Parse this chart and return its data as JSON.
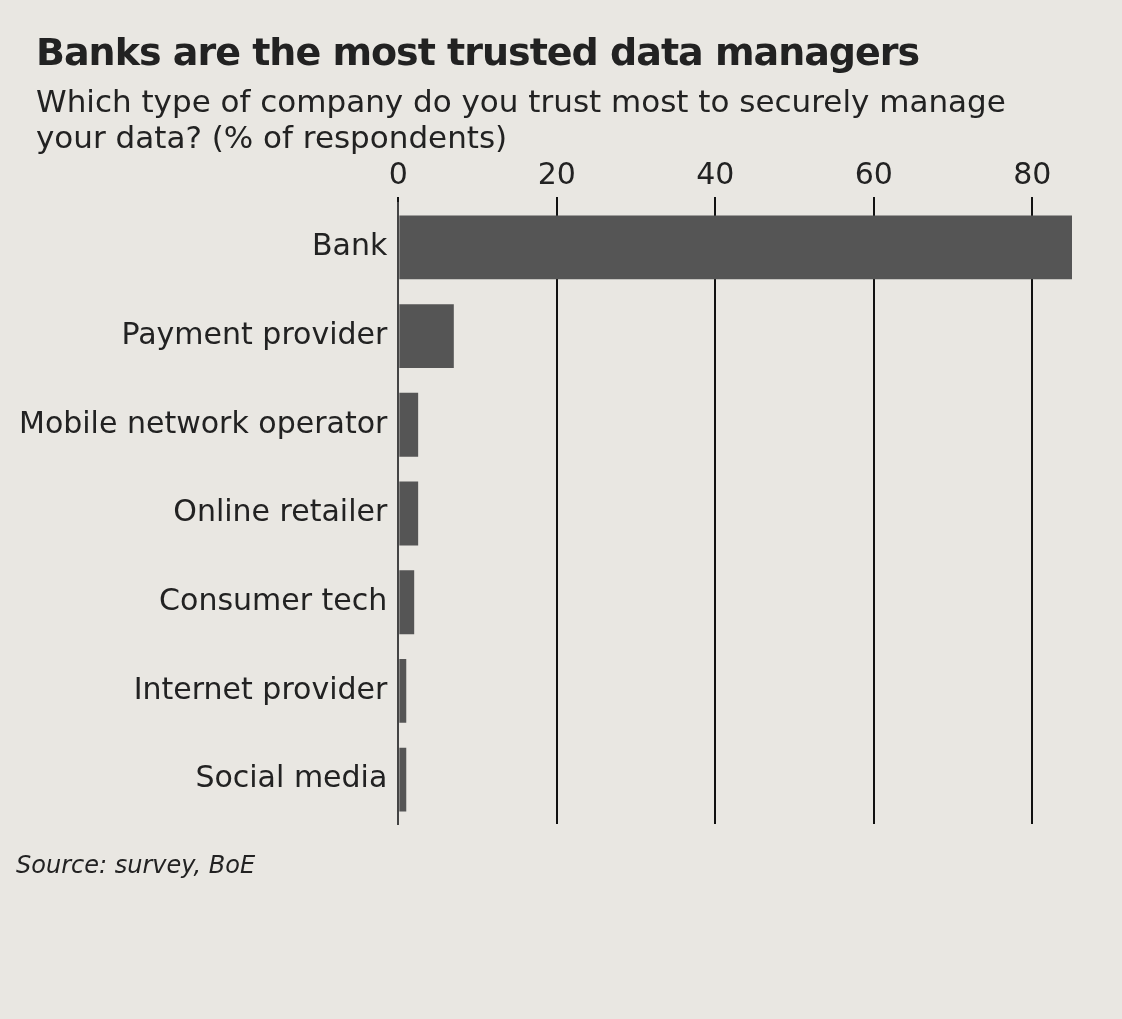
{
  "chart_data": {
    "type": "bar",
    "orientation": "horizontal",
    "title": "Banks are the most trusted data managers",
    "subtitle": "Which type of company do you trust most to securely manage your data? (% of respondents)",
    "categories": [
      "Bank",
      "Payment provider",
      "Mobile network operator",
      "Online retailer",
      "Consumer tech",
      "Internet provider",
      "Social media"
    ],
    "values": [
      85,
      7,
      2.5,
      2.5,
      2,
      1,
      1
    ],
    "color": "#555555",
    "xlim": [
      0,
      85
    ],
    "xticks": [
      0,
      20,
      40,
      60,
      80
    ],
    "grid": "x",
    "legend": false,
    "annotations": [
      "Source: survey, BoE"
    ]
  }
}
